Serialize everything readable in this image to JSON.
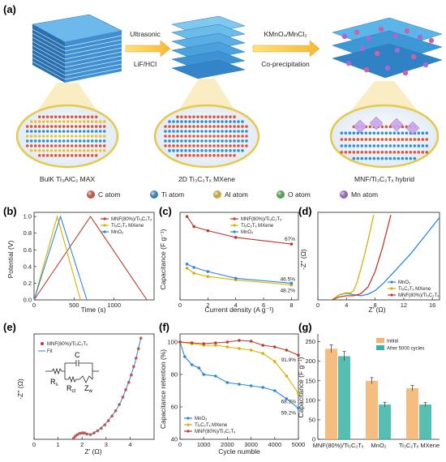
{
  "figure": {
    "panel_a": {
      "label": "(a)",
      "step1_top": "Ultrasonic",
      "step1_bottom": "LiF/HCl",
      "step2_top": "KMnO₄/MnCl₂",
      "step2_bottom": "Co-precipitation",
      "caption_1": "BulK Ti₃AlC₂ MAX",
      "caption_2": "2D Ti₃C₂Tₓ MXene",
      "caption_3": "MNF/Ti₃C₂Tₓ hybrid",
      "atoms": [
        {
          "label": "C atom",
          "color": "#e0553f"
        },
        {
          "label": "Ti atom",
          "color": "#2f8fd8"
        },
        {
          "label": "Al atom",
          "color": "#e9c23c"
        },
        {
          "label": "O atom",
          "color": "#4cb847"
        },
        {
          "label": "Mn atom",
          "color": "#a868d8"
        }
      ]
    },
    "panel_b": {
      "label": "(b)",
      "xlabel": "Time (s)",
      "ylabel": "Potential (V)"
    },
    "panel_c": {
      "label": "(c)",
      "xlabel": "Current density (A g⁻¹)",
      "ylabel": "Capacitance (F g⁻¹)"
    },
    "panel_d": {
      "label": "(d)",
      "xlabel": "Z' (Ω)",
      "ylabel": "-Z'' (Ω)"
    },
    "panel_e": {
      "label": "(e)",
      "xlabel": "Z' (Ω)",
      "ylabel": "-Z'' (Ω)",
      "circuit": {
        "rs": "R",
        "rs_sub": "s",
        "c": "C",
        "rct": "R",
        "rct_sub": "ct",
        "zw": "Z",
        "zw_sub": "w"
      }
    },
    "panel_f": {
      "label": "(f)",
      "xlabel": "Cycle numble",
      "ylabel": "Capacitance retention (%)"
    },
    "panel_g": {
      "label": "(g)",
      "ylabel": "Capacitance (F g⁻¹)"
    }
  },
  "chart_data": [
    {
      "panel": "b",
      "type": "line",
      "xlim": [
        0,
        1500
      ],
      "ylim": [
        0,
        1.05
      ],
      "xticks": [
        0,
        500,
        1000
      ],
      "yticks": [
        0.0,
        0.2,
        0.4,
        0.6,
        0.8,
        1.0
      ],
      "ytick_labels": [
        "0.0",
        "0.2",
        "0.4",
        "0.6",
        "0.8",
        "1.0"
      ],
      "legend": "top-right",
      "series": [
        {
          "name": "MNF(80%)/Ti₃C₂Tₓ",
          "color": "#c0392b",
          "x": [
            0,
            705,
            1410
          ],
          "y": [
            0,
            1.0,
            0
          ]
        },
        {
          "name": "Ti₃C₂Tₓ MXene",
          "color": "#d4b200",
          "x": [
            0,
            290,
            580
          ],
          "y": [
            0,
            1.0,
            0
          ]
        },
        {
          "name": "MnO₂",
          "color": "#2e86de",
          "x": [
            0,
            330,
            660
          ],
          "y": [
            0,
            1.0,
            0
          ]
        }
      ]
    },
    {
      "panel": "c",
      "type": "line",
      "xlim": [
        0,
        8.5
      ],
      "ylim": [
        0,
        1.05
      ],
      "xticks": [
        0,
        2,
        4,
        6,
        8
      ],
      "yticks": [],
      "legend": "top-right",
      "annotations": [
        "67%",
        "46.5%",
        "48.2%"
      ],
      "series": [
        {
          "name": "MNF(80%)/Ti₃C₂Tₓ",
          "color": "#c0392b",
          "x": [
            0.5,
            1,
            2,
            4,
            8
          ],
          "y": [
            1.0,
            0.88,
            0.83,
            0.75,
            0.67
          ]
        },
        {
          "name": "Ti₃C₂Tₓ MXene",
          "color": "#d4b200",
          "x": [
            0.5,
            1,
            2,
            4,
            8
          ],
          "y": [
            0.38,
            0.32,
            0.28,
            0.24,
            0.18
          ]
        },
        {
          "name": "MnO₂",
          "color": "#2e86de",
          "x": [
            0.5,
            1,
            2,
            4,
            8
          ],
          "y": [
            0.43,
            0.39,
            0.34,
            0.26,
            0.2
          ]
        }
      ]
    },
    {
      "panel": "d",
      "type": "line",
      "xlim": [
        0,
        17
      ],
      "ylim": [
        0,
        17
      ],
      "xticks": [
        0,
        4,
        8,
        12,
        16
      ],
      "yticks": [],
      "legend": "bottom-right",
      "series": [
        {
          "name": "MnO₂",
          "color": "#2e86de",
          "x": [
            2,
            3,
            4,
            5,
            6,
            7,
            8,
            9,
            11,
            13,
            15,
            17
          ],
          "y": [
            0,
            1,
            1.3,
            1,
            0.8,
            1.1,
            1.8,
            3,
            6,
            9,
            12.5,
            16
          ]
        },
        {
          "name": "Ti₃C₂Tₓ MXene",
          "color": "#d4b200",
          "x": [
            2,
            3,
            4,
            4.5,
            5,
            5.5,
            6.2,
            7,
            7.8
          ],
          "y": [
            0,
            1,
            1.4,
            1.3,
            1.8,
            3.5,
            7,
            11.5,
            16.5
          ]
        },
        {
          "name": "MNF(80%)/Ti₃C₂Tₓ",
          "color": "#c0392b",
          "x": [
            2,
            3,
            4,
            5,
            6,
            7,
            8,
            9,
            10.2
          ],
          "y": [
            0,
            0.6,
            0.8,
            0.8,
            1.2,
            2.5,
            5.5,
            10,
            16.5
          ]
        }
      ]
    },
    {
      "panel": "e",
      "type": "scatter",
      "xlim": [
        0,
        5
      ],
      "ylim": [
        0,
        5
      ],
      "xticks": [
        0,
        1,
        2,
        3,
        4
      ],
      "yticks": [],
      "legend": "top-left",
      "series": [
        {
          "name": "MNF(80%)/Ti₃C₂Tₓ",
          "color": "#c0392b",
          "marker": "o",
          "x": [
            1.65,
            1.72,
            1.8,
            1.9,
            2.0,
            2.1,
            2.2,
            2.35,
            2.5,
            2.65,
            2.8,
            2.95,
            3.1,
            3.25,
            3.4,
            3.55,
            3.7,
            3.82,
            3.95,
            4.05,
            4.15,
            4.25,
            4.35,
            4.45
          ],
          "y": [
            0.05,
            0.15,
            0.22,
            0.28,
            0.3,
            0.3,
            0.25,
            0.22,
            0.3,
            0.4,
            0.52,
            0.68,
            0.88,
            1.1,
            1.35,
            1.65,
            2.0,
            2.35,
            2.7,
            3.05,
            3.45,
            3.85,
            4.3,
            4.8
          ]
        },
        {
          "name": "Fit",
          "color": "#2e86de",
          "marker": "line",
          "x": [
            1.65,
            1.8,
            2.0,
            2.2,
            2.4,
            2.6,
            2.8,
            3.0,
            3.2,
            3.4,
            3.6,
            3.8,
            4.0,
            4.2,
            4.45
          ],
          "y": [
            0.05,
            0.22,
            0.3,
            0.25,
            0.25,
            0.38,
            0.55,
            0.78,
            1.05,
            1.35,
            1.75,
            2.3,
            2.9,
            3.6,
            4.8
          ]
        }
      ]
    },
    {
      "panel": "f",
      "type": "line",
      "xlim": [
        0,
        5000
      ],
      "ylim": [
        40,
        105
      ],
      "xticks": [
        0,
        1000,
        2000,
        3000,
        4000,
        5000
      ],
      "yticks": [
        40,
        60,
        80,
        100
      ],
      "legend": "bottom-left",
      "annotations": [
        "91.9%",
        "68.3%",
        "59.2%"
      ],
      "series": [
        {
          "name": "MnO₂",
          "color": "#2e86de",
          "x": [
            0,
            200,
            500,
            800,
            1000,
            1500,
            2000,
            2500,
            3000,
            3500,
            4000,
            4500,
            5000
          ],
          "y": [
            100,
            91,
            86,
            84,
            80,
            79,
            75,
            74,
            73,
            72,
            70,
            65,
            59.2
          ]
        },
        {
          "name": "Ti₃C₂Tₓ MXene",
          "color": "#d4b200",
          "x": [
            0,
            500,
            1000,
            1500,
            2000,
            2500,
            3000,
            3500,
            4000,
            4500,
            5000
          ],
          "y": [
            100,
            99,
            98,
            98,
            97,
            96,
            95,
            93,
            88,
            79,
            68.3
          ]
        },
        {
          "name": "MNF(80%)/Ti₃C₂Tₓ",
          "color": "#c0392b",
          "x": [
            0,
            500,
            1000,
            1500,
            2000,
            2500,
            3000,
            3500,
            4000,
            4500,
            5000
          ],
          "y": [
            100,
            99.5,
            99,
            99.5,
            100,
            101,
            100.5,
            98,
            97,
            95,
            91.9
          ]
        }
      ]
    },
    {
      "panel": "g",
      "type": "bar",
      "categories": [
        "MNF(80%)/Ti₃C₂Tₓ",
        "MnO₂",
        "Ti₃C₂Tₓ MXene"
      ],
      "ylim": [
        0,
        270
      ],
      "yticks": [
        0,
        50,
        100,
        150,
        200,
        250
      ],
      "legend": "top-right",
      "series": [
        {
          "name": "Initial",
          "color": "#f5b26b",
          "values": [
            232,
            150,
            131
          ],
          "errors": [
            10,
            8,
            7
          ]
        },
        {
          "name": "Afrer 5000 cycles",
          "color": "#3ab3a4",
          "values": [
            213,
            89,
            89
          ],
          "errors": [
            12,
            6,
            5
          ]
        }
      ]
    }
  ]
}
